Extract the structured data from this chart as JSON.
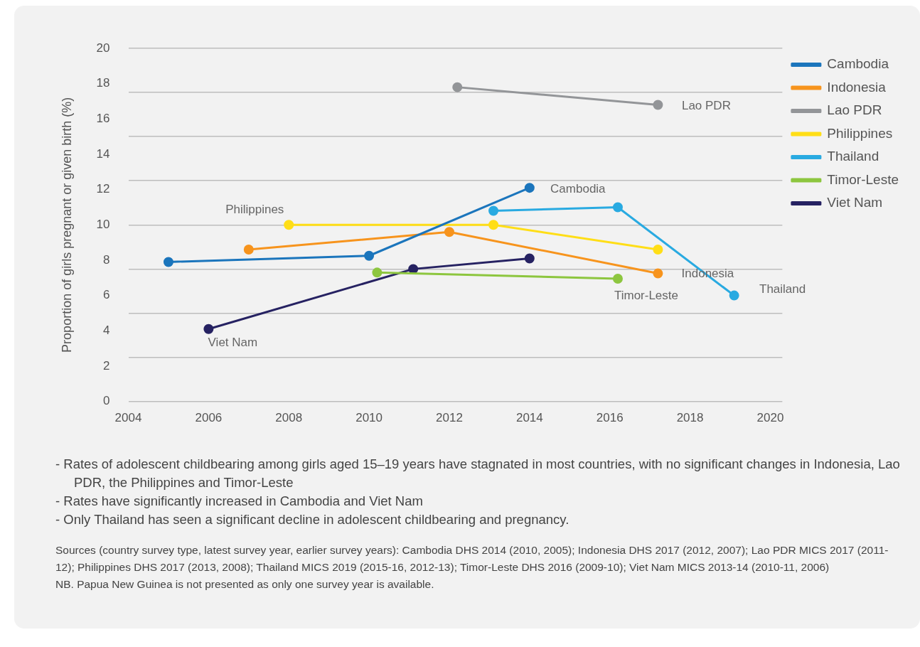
{
  "chart_data": {
    "type": "line",
    "ylabel": "Proportion of girls pregnant or given birth (%)",
    "xlim": [
      2004,
      2020.3
    ],
    "xticks": [
      2004,
      2006,
      2008,
      2010,
      2012,
      2014,
      2016,
      2018,
      2020
    ],
    "ylim": [
      0,
      20
    ],
    "yticks": [
      0,
      2,
      {
        "value": 2.5,
        "label": null
      },
      4,
      {
        "value": 5,
        "label": null
      },
      6,
      {
        "value": 7.5,
        "label": null
      },
      8,
      10,
      12,
      {
        "value": 12.5,
        "label": null
      },
      14,
      {
        "value": 15,
        "label": null
      },
      16,
      {
        "value": 17.5,
        "label": null
      },
      18,
      20
    ],
    "grid": "y",
    "legend": "top right",
    "marker": "circle",
    "line_style": "solid",
    "series": [
      {
        "name": "Cambodia",
        "color": "#1b75bc",
        "x": [
          2005,
          2010,
          2014
        ],
        "values": [
          7.9,
          8.25,
          12.1
        ]
      },
      {
        "name": "Indonesia",
        "color": "#f7941d",
        "x": [
          2007,
          2012,
          2017.2
        ],
        "values": [
          8.6,
          9.6,
          7.25
        ]
      },
      {
        "name": "Lao PDR",
        "color": "#939598",
        "x": [
          2012.2,
          2017.2
        ],
        "values": [
          17.8,
          16.8
        ]
      },
      {
        "name": "Philippines",
        "color": "#ffde17",
        "x": [
          2008,
          2013.1,
          2017.2
        ],
        "values": [
          10.0,
          10.0,
          8.6
        ]
      },
      {
        "name": "Thailand",
        "color": "#29aae1",
        "x": [
          2013.1,
          2016.2,
          2019.1
        ],
        "values": [
          10.8,
          11.0,
          6.0
        ]
      },
      {
        "name": "Timor-Leste",
        "color": "#8dc63f",
        "x": [
          2010.2,
          2016.2
        ],
        "values": [
          7.3,
          6.95
        ]
      },
      {
        "name": "Viet Nam",
        "color": "#262262",
        "x": [
          2006,
          2011.1,
          2014
        ],
        "values": [
          4.1,
          7.5,
          8.1
        ]
      }
    ],
    "annotations": [
      {
        "text": "Cambodia",
        "x": 2014,
        "y": 12.1
      },
      {
        "text": "Lao PDR",
        "x": 2017.2,
        "y": 16.8
      },
      {
        "text": "Philippines",
        "x": 2008,
        "y": 10.0
      },
      {
        "text": "Indonesia",
        "x": 2017.2,
        "y": 7.25
      },
      {
        "text": "Thailand",
        "x": 2019.1,
        "y": 6.0
      },
      {
        "text": "Timor-Leste",
        "x": 2016.2,
        "y": 6.95
      },
      {
        "text": "Viet Nam",
        "x": 2006,
        "y": 4.1
      },
      "- Rates of adolescent childbearing among girls aged 15–19 years have stagnated in most countries, with no significant changes in Indonesia, Lao PDR, the Philippines and Timor-Leste",
      "- Rates have significantly increased in Cambodia and Viet Nam",
      "- Only Thailand has seen a significant decline in adolescent childbearing and pregnancy.",
      "Sources (country survey type, latest survey year, earlier survey years): Cambodia DHS 2014 (2010, 2005); Indonesia DHS 2017 (2012, 2007); Lao PDR MICS 2017 (2011-12); Philippines DHS 2017 (2013, 2008); Thailand MICS 2019 (2015-16, 2012-13); Timor-Leste DHS 2016 (2009-10); Viet Nam MICS 2013-14 (2010-11, 2006)",
      "NB. Papua New Guinea is not presented as only one survey year is available."
    ]
  }
}
